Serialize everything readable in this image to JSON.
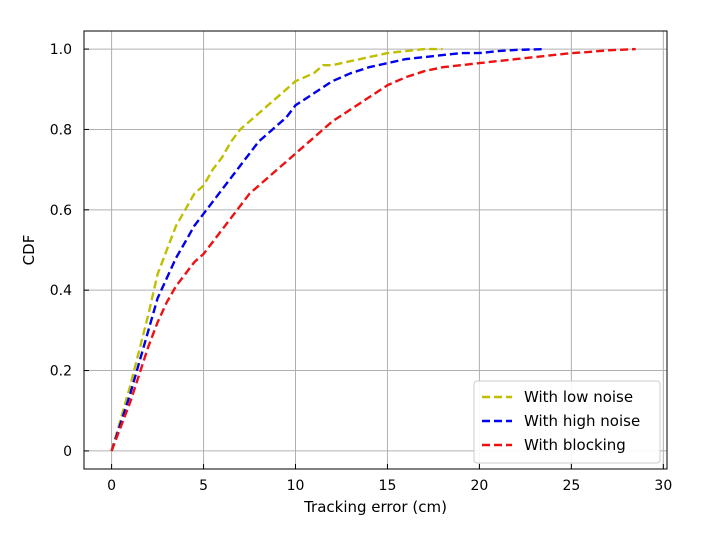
{
  "chart_data": {
    "type": "line",
    "title": "",
    "xlabel": "Tracking error (cm)",
    "ylabel": "CDF",
    "xlim": [
      -1.5,
      30.2
    ],
    "ylim": [
      -0.045,
      1.045
    ],
    "xticks": [
      0,
      5,
      10,
      15,
      20,
      25,
      30
    ],
    "xtick_labels": [
      "0",
      "5",
      "10",
      "15",
      "20",
      "25",
      "30"
    ],
    "yticks": [
      0,
      0.2,
      0.4,
      0.6,
      0.8,
      1.0
    ],
    "ytick_labels": [
      "0",
      "0.2",
      "0.4",
      "0.6",
      "0.8",
      "1.0"
    ],
    "grid": true,
    "legend_position": "bottom-right",
    "series": [
      {
        "name": "With low noise",
        "color": "#bfbf00",
        "line_style": "dashed",
        "x": [
          0,
          0.5,
          1,
          1.5,
          2,
          2.5,
          3,
          3.5,
          4,
          4.5,
          5,
          5.5,
          6,
          6.5,
          7,
          7.5,
          8,
          8.5,
          9,
          9.5,
          10,
          10.5,
          11,
          11.5,
          12,
          13,
          14,
          15,
          16,
          17,
          18
        ],
        "y": [
          0,
          0.08,
          0.16,
          0.25,
          0.34,
          0.44,
          0.5,
          0.56,
          0.6,
          0.64,
          0.66,
          0.7,
          0.73,
          0.77,
          0.8,
          0.82,
          0.84,
          0.86,
          0.88,
          0.9,
          0.92,
          0.93,
          0.94,
          0.96,
          0.96,
          0.97,
          0.98,
          0.99,
          0.995,
          1.0,
          1.0
        ]
      },
      {
        "name": "With high noise",
        "color": "#0000ee",
        "line_style": "dashed",
        "x": [
          0,
          0.5,
          1,
          1.5,
          2,
          2.5,
          3,
          3.5,
          4,
          4.5,
          5,
          5.5,
          6,
          6.5,
          7,
          7.5,
          8,
          8.5,
          9,
          9.5,
          10,
          11,
          12,
          13,
          14,
          15,
          16,
          17,
          18,
          19,
          20,
          21,
          22,
          23.5
        ],
        "y": [
          0,
          0.07,
          0.14,
          0.22,
          0.3,
          0.38,
          0.43,
          0.48,
          0.52,
          0.56,
          0.59,
          0.62,
          0.65,
          0.68,
          0.71,
          0.74,
          0.77,
          0.79,
          0.81,
          0.83,
          0.86,
          0.89,
          0.92,
          0.94,
          0.955,
          0.965,
          0.975,
          0.98,
          0.985,
          0.99,
          0.99,
          0.995,
          0.998,
          1.0
        ]
      },
      {
        "name": "With blocking",
        "color": "#ee1111",
        "line_style": "dashed",
        "x": [
          0,
          0.5,
          1,
          1.5,
          2,
          2.5,
          3,
          3.5,
          4,
          4.5,
          5,
          5.5,
          6,
          6.5,
          7,
          7.5,
          8,
          8.5,
          9,
          9.5,
          10,
          11,
          12,
          13,
          14,
          15,
          16,
          17,
          18,
          19,
          20,
          21,
          22,
          23,
          24,
          25,
          26,
          27,
          28.5
        ],
        "y": [
          0,
          0.06,
          0.12,
          0.19,
          0.26,
          0.32,
          0.37,
          0.41,
          0.44,
          0.47,
          0.49,
          0.52,
          0.55,
          0.58,
          0.61,
          0.64,
          0.66,
          0.68,
          0.7,
          0.72,
          0.74,
          0.78,
          0.82,
          0.85,
          0.88,
          0.91,
          0.93,
          0.945,
          0.955,
          0.96,
          0.965,
          0.97,
          0.975,
          0.98,
          0.985,
          0.99,
          0.993,
          0.997,
          1.0
        ]
      }
    ]
  }
}
